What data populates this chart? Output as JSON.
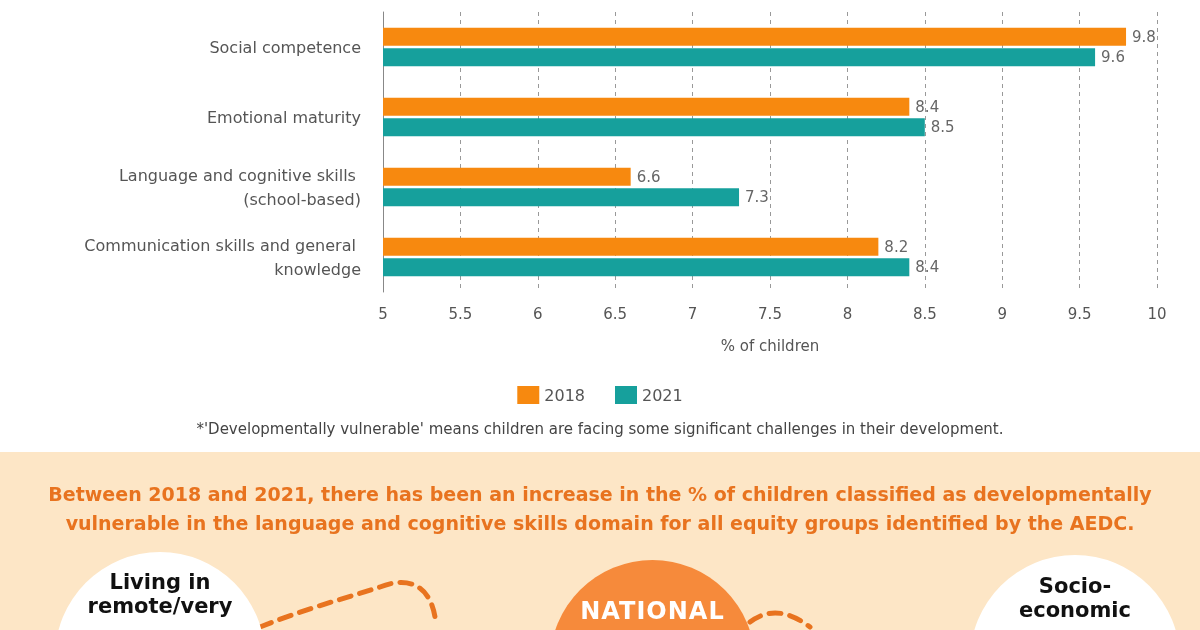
{
  "chart_data": [
    {
      "type": "bar",
      "orientation": "horizontal",
      "categories": [
        "Social competence",
        "Emotional maturity",
        "Language and cognitive skills (school-based)",
        "Communication skills and general knowledge"
      ],
      "series": [
        {
          "name": "2018",
          "color": "#f7890f",
          "values": [
            9.8,
            8.4,
            6.6,
            8.2
          ]
        },
        {
          "name": "2021",
          "color": "#16a09c",
          "values": [
            9.6,
            8.5,
            7.3,
            8.4
          ]
        }
      ],
      "xlim": [
        5,
        10
      ],
      "xticks": [
        5,
        5.5,
        6,
        6.5,
        7,
        7.5,
        8,
        8.5,
        9,
        9.5,
        10
      ],
      "xlabel": "% of children",
      "grid": "x",
      "legend": "bottom",
      "data_labels": true,
      "annotations": [
        "*'Developmentally vulnerable' means children are facing some significant challenges in their development."
      ]
    },
    {
      "type": "other",
      "title": "Between 2018 and 2021, there has been an increase in the % of children classified as developmentally vulnerable in the language and cognitive skills domain for all equity groups identified by the AEDC.",
      "annotations": [
        "Living in remote/very",
        "NATIONAL",
        "Socio-economic"
      ]
    }
  ]
}
